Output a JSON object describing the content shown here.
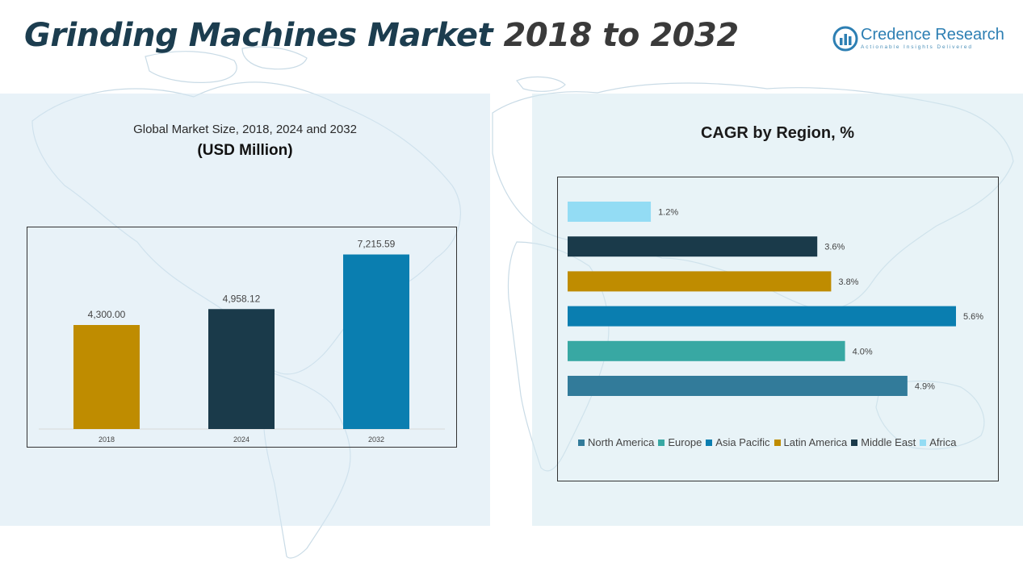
{
  "header": {
    "title_part1": "Grinding Machines Market ",
    "title_part2": "2018 to 2032",
    "brand_name": "Credence Research",
    "brand_tagline": "Actionable Insights Delivered"
  },
  "colors": {
    "title_primary": "#1c3d4f",
    "title_secondary": "#3a3a3a",
    "brand": "#2d7fb3"
  },
  "chart_data": [
    {
      "type": "bar",
      "title": "Global Market Size, 2018, 2024 and 2032",
      "subtitle": "(USD Million)",
      "categories": [
        "2018",
        "2024",
        "2032"
      ],
      "values": [
        4300.0,
        4958.12,
        7215.59
      ],
      "value_labels": [
        "4,300.00",
        "4,958.12",
        "7,215.59"
      ],
      "colors": [
        "#bf8c00",
        "#1a3a4a",
        "#0a7eb0"
      ],
      "ylim": [
        0,
        8000
      ],
      "grid": false,
      "legend": "none"
    },
    {
      "type": "bar",
      "orientation": "horizontal",
      "title": "CAGR by Region, %",
      "categories": [
        "North America",
        "Europe",
        "Asia Pacific",
        "Latin America",
        "Middle East",
        "Africa"
      ],
      "values": [
        4.9,
        4.0,
        5.6,
        3.8,
        3.6,
        1.2
      ],
      "value_labels": [
        "4.9%",
        "4.0%",
        "5.6%",
        "3.8%",
        "3.6%",
        "1.2%"
      ],
      "colors": [
        "#327b9a",
        "#38a8a3",
        "#0a7eb0",
        "#bf8c00",
        "#1a3a4a",
        "#93dcf4"
      ],
      "xlim": [
        0,
        5.6
      ],
      "grid": false,
      "legend": "bottom"
    }
  ]
}
